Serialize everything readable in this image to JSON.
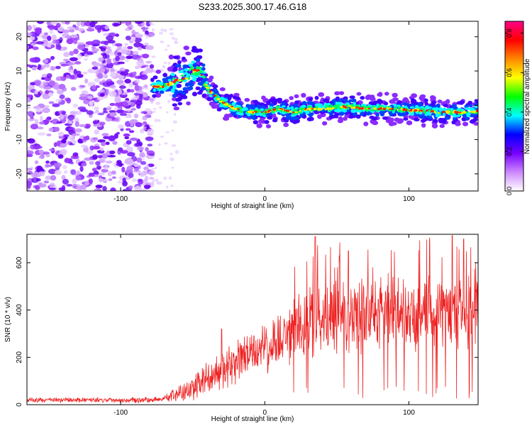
{
  "title": "S233.2025.300.17.46.G18",
  "chart_data": [
    {
      "type": "heatmap",
      "xlabel": "Height of straight line (km)",
      "ylabel": "Frequency (Hz)",
      "xlim": [
        -165,
        148
      ],
      "ylim": [
        -25,
        24.5
      ],
      "xticks": [
        -100,
        0,
        100
      ],
      "yticks": [
        -20,
        -10,
        0,
        10,
        20
      ],
      "colorbar": {
        "label": "Normalized spectral amplitude",
        "range": [
          0,
          0.86
        ],
        "ticks": [
          "0.0",
          "0.2",
          "0.4",
          "0.6",
          "0.8"
        ],
        "tick_values": [
          0.0,
          0.2,
          0.4,
          0.6,
          0.8
        ],
        "colormap": [
          "#ffffff",
          "#cc88ff",
          "#7700ff",
          "#0000ff",
          "#00ffff",
          "#00ff00",
          "#ffff00",
          "#ff8800",
          "#ff0000",
          "#ff0088"
        ]
      },
      "ridge": {
        "x": [
          -78,
          -70,
          -62,
          -55,
          -50,
          -45,
          -42,
          -38,
          -30,
          -20,
          -10,
          0,
          10,
          20,
          30,
          40,
          50,
          60,
          70,
          80,
          90,
          100,
          110,
          120,
          130,
          140,
          148
        ],
        "y": [
          5.5,
          5.5,
          7,
          8,
          10,
          10,
          7,
          4,
          1,
          -1,
          -2,
          -2,
          -1,
          -2,
          -1,
          -1,
          -0.5,
          -0.5,
          -1,
          -1,
          -1,
          -1.5,
          -1.5,
          -2,
          -2,
          -2,
          -1.5
        ]
      },
      "noise_region_x": [
        -165,
        -78
      ]
    },
    {
      "type": "line",
      "xlabel": "Height of straight line (km)",
      "ylabel": "SNR (10 * v/v)",
      "xlim": [
        -165,
        148
      ],
      "ylim": [
        0,
        720
      ],
      "xticks": [
        -100,
        0,
        100
      ],
      "yticks": [
        0,
        200,
        400,
        600
      ],
      "color": "#ee2222",
      "trend": {
        "x": [
          -165,
          -80,
          -70,
          -60,
          -50,
          -40,
          -30,
          -20,
          -10,
          0,
          10,
          20,
          25,
          40,
          60,
          80,
          100,
          120,
          148
        ],
        "base": [
          20,
          20,
          25,
          45,
          70,
          105,
          140,
          175,
          210,
          240,
          265,
          300,
          350,
          370,
          375,
          385,
          390,
          395,
          400
        ],
        "spread": [
          8,
          10,
          14,
          30,
          45,
          60,
          65,
          70,
          80,
          90,
          100,
          110,
          120,
          130,
          130,
          130,
          130,
          130,
          130
        ]
      },
      "peaks": [
        [
          35,
          710
        ],
        [
          58,
          650
        ],
        [
          -30,
          320
        ],
        [
          130,
          715
        ],
        [
          138,
          700
        ]
      ]
    }
  ]
}
